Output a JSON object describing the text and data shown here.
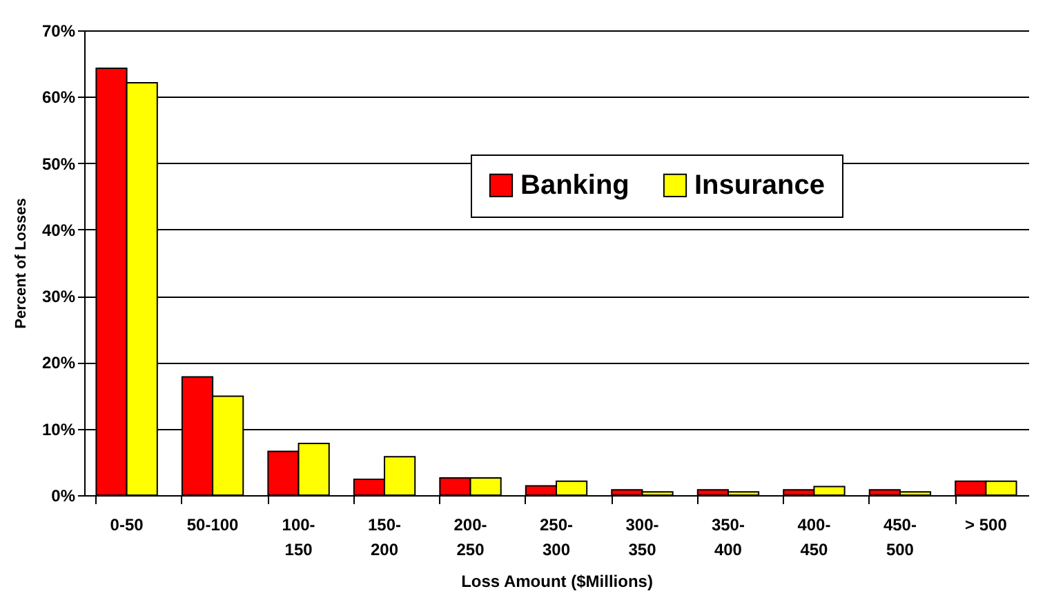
{
  "chart_data": {
    "type": "bar",
    "xlabel": "Loss Amount ($Millions)",
    "ylabel": "Percent of Losses",
    "categories": [
      "0-50",
      "50-100",
      "100-150",
      "150-200",
      "200-250",
      "250-300",
      "300-350",
      "350-400",
      "400-450",
      "450-500",
      "> 500"
    ],
    "series": [
      {
        "name": "Banking",
        "color": "#ff0000",
        "values": [
          64.3,
          17.8,
          6.6,
          2.4,
          2.6,
          1.4,
          0.8,
          0.8,
          0.8,
          0.8,
          2.1
        ]
      },
      {
        "name": "Insurance",
        "color": "#ffff00",
        "values": [
          62.1,
          14.9,
          7.8,
          5.8,
          2.6,
          2.1,
          0.5,
          0.5,
          1.3,
          0.5,
          2.1
        ]
      }
    ],
    "ylim": [
      0,
      70
    ],
    "yticks": [
      {
        "value": 0,
        "label": "0%"
      },
      {
        "value": 10,
        "label": "10%"
      },
      {
        "value": 20,
        "label": "20%"
      },
      {
        "value": 30,
        "label": "30%"
      },
      {
        "value": 40,
        "label": "40%"
      },
      {
        "value": 50,
        "label": "50%"
      },
      {
        "value": 60,
        "label": "60%"
      },
      {
        "value": 70,
        "label": "70%"
      }
    ],
    "grid": "y",
    "legend": "top"
  }
}
